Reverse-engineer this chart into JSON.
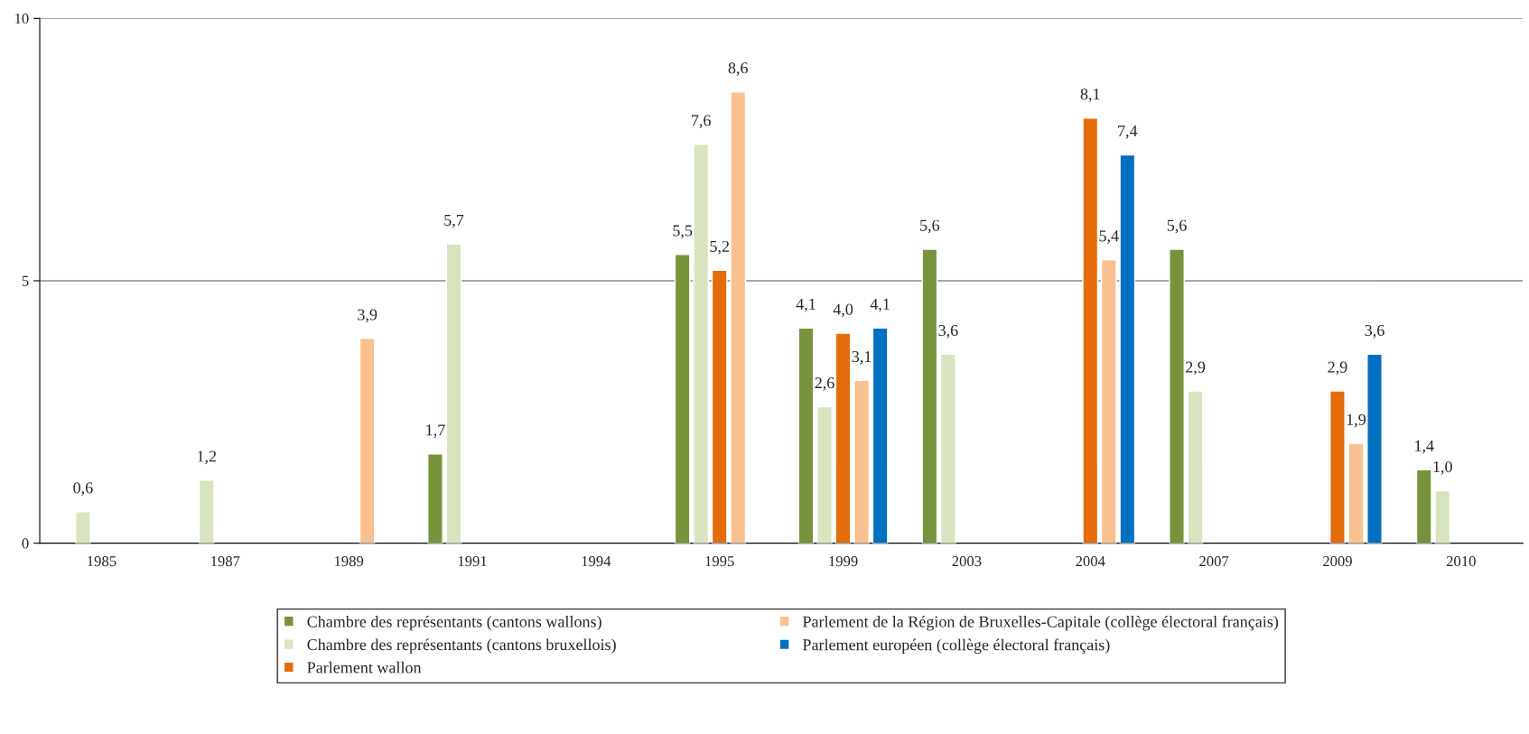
{
  "chart_data": {
    "type": "bar",
    "categories": [
      "1985",
      "1987",
      "1989",
      "1991",
      "1994",
      "1995",
      "1999",
      "2003",
      "2004",
      "2007",
      "2009",
      "2010"
    ],
    "series": [
      {
        "name": "Chambre des représentants (cantons wallons)",
        "color": "#77933c",
        "values": [
          null,
          null,
          null,
          1.7,
          null,
          5.5,
          4.1,
          5.6,
          null,
          5.6,
          null,
          1.4
        ],
        "value_labels": [
          null,
          null,
          null,
          "1,7",
          null,
          "5,5",
          "4,1",
          "5,6",
          null,
          "5,6",
          null,
          "1,4"
        ]
      },
      {
        "name": "Chambre des représentants (cantons bruxellois)",
        "color": "#d7e4bd",
        "values": [
          0.6,
          1.2,
          null,
          5.7,
          null,
          7.6,
          2.6,
          3.6,
          null,
          2.9,
          null,
          1.0
        ],
        "value_labels": [
          "0,6",
          "1,2",
          null,
          "5,7",
          null,
          "7,6",
          "2,6",
          "3,6",
          null,
          "2,9",
          null,
          "1,0"
        ]
      },
      {
        "name": "Parlement wallon",
        "color": "#e46c0a",
        "values": [
          null,
          null,
          null,
          null,
          null,
          5.2,
          4.0,
          null,
          8.1,
          null,
          2.9,
          null
        ],
        "value_labels": [
          null,
          null,
          null,
          null,
          null,
          "5,2",
          "4,0",
          null,
          "8,1",
          null,
          "2,9",
          null
        ]
      },
      {
        "name": "Parlement de la Région de Bruxelles-Capitale (collège électoral français)",
        "color": "#fac090",
        "values": [
          null,
          null,
          3.9,
          null,
          null,
          8.6,
          3.1,
          null,
          5.4,
          null,
          1.9,
          null
        ],
        "value_labels": [
          null,
          null,
          "3,9",
          null,
          null,
          "8,6",
          "3,1",
          null,
          "5,4",
          null,
          "1,9",
          null
        ]
      },
      {
        "name": "Parlement européen (collège électoral français)",
        "color": "#0070c0",
        "values": [
          null,
          null,
          null,
          null,
          null,
          null,
          4.1,
          null,
          7.4,
          null,
          3.6,
          null
        ],
        "value_labels": [
          null,
          null,
          null,
          null,
          null,
          null,
          "4,1",
          null,
          "7,4",
          null,
          "3,6",
          null
        ]
      }
    ],
    "ylim": [
      0,
      10
    ],
    "yticks": [
      0,
      5,
      10
    ],
    "grid": "y",
    "legend": "bottom"
  }
}
